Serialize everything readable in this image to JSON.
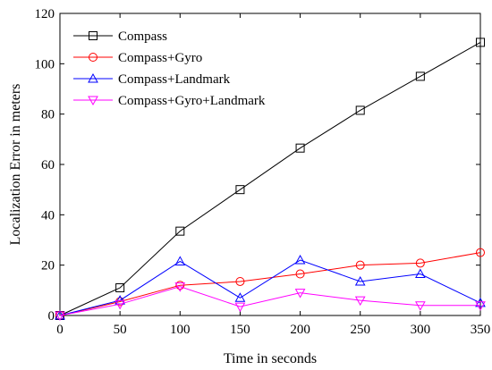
{
  "chart_data": {
    "type": "line",
    "title": "",
    "xlabel": "Time in seconds",
    "ylabel": "Localization Error in meters",
    "xlim": [
      0,
      350
    ],
    "ylim": [
      0,
      120
    ],
    "xticks": [
      "0",
      "50",
      "100",
      "150",
      "200",
      "250",
      "300",
      "350"
    ],
    "yticks": [
      "0",
      "20",
      "40",
      "60",
      "80",
      "100",
      "120"
    ],
    "grid": false,
    "legend_position": "top-left",
    "x": [
      0,
      50,
      100,
      150,
      200,
      250,
      300,
      350
    ],
    "series": [
      {
        "name": "Compass",
        "color": "#000000",
        "marker": "square",
        "values": [
          0,
          11,
          33.5,
          50,
          66.5,
          81.5,
          95,
          108.5
        ]
      },
      {
        "name": "Compass+Gyro",
        "color": "#ff0000",
        "marker": "circle",
        "values": [
          0,
          5.5,
          12,
          13.5,
          16.5,
          20,
          20.8,
          25
        ]
      },
      {
        "name": "Compass+Landmark",
        "color": "#0000ff",
        "marker": "triangle-up",
        "values": [
          0,
          6,
          21.5,
          7,
          22,
          13.5,
          16.5,
          5
        ]
      },
      {
        "name": "Compass+Gyro+Landmark",
        "color": "#ff00ff",
        "marker": "triangle-down",
        "values": [
          0,
          4.5,
          11.5,
          3.5,
          9,
          6,
          4,
          4
        ]
      }
    ]
  }
}
